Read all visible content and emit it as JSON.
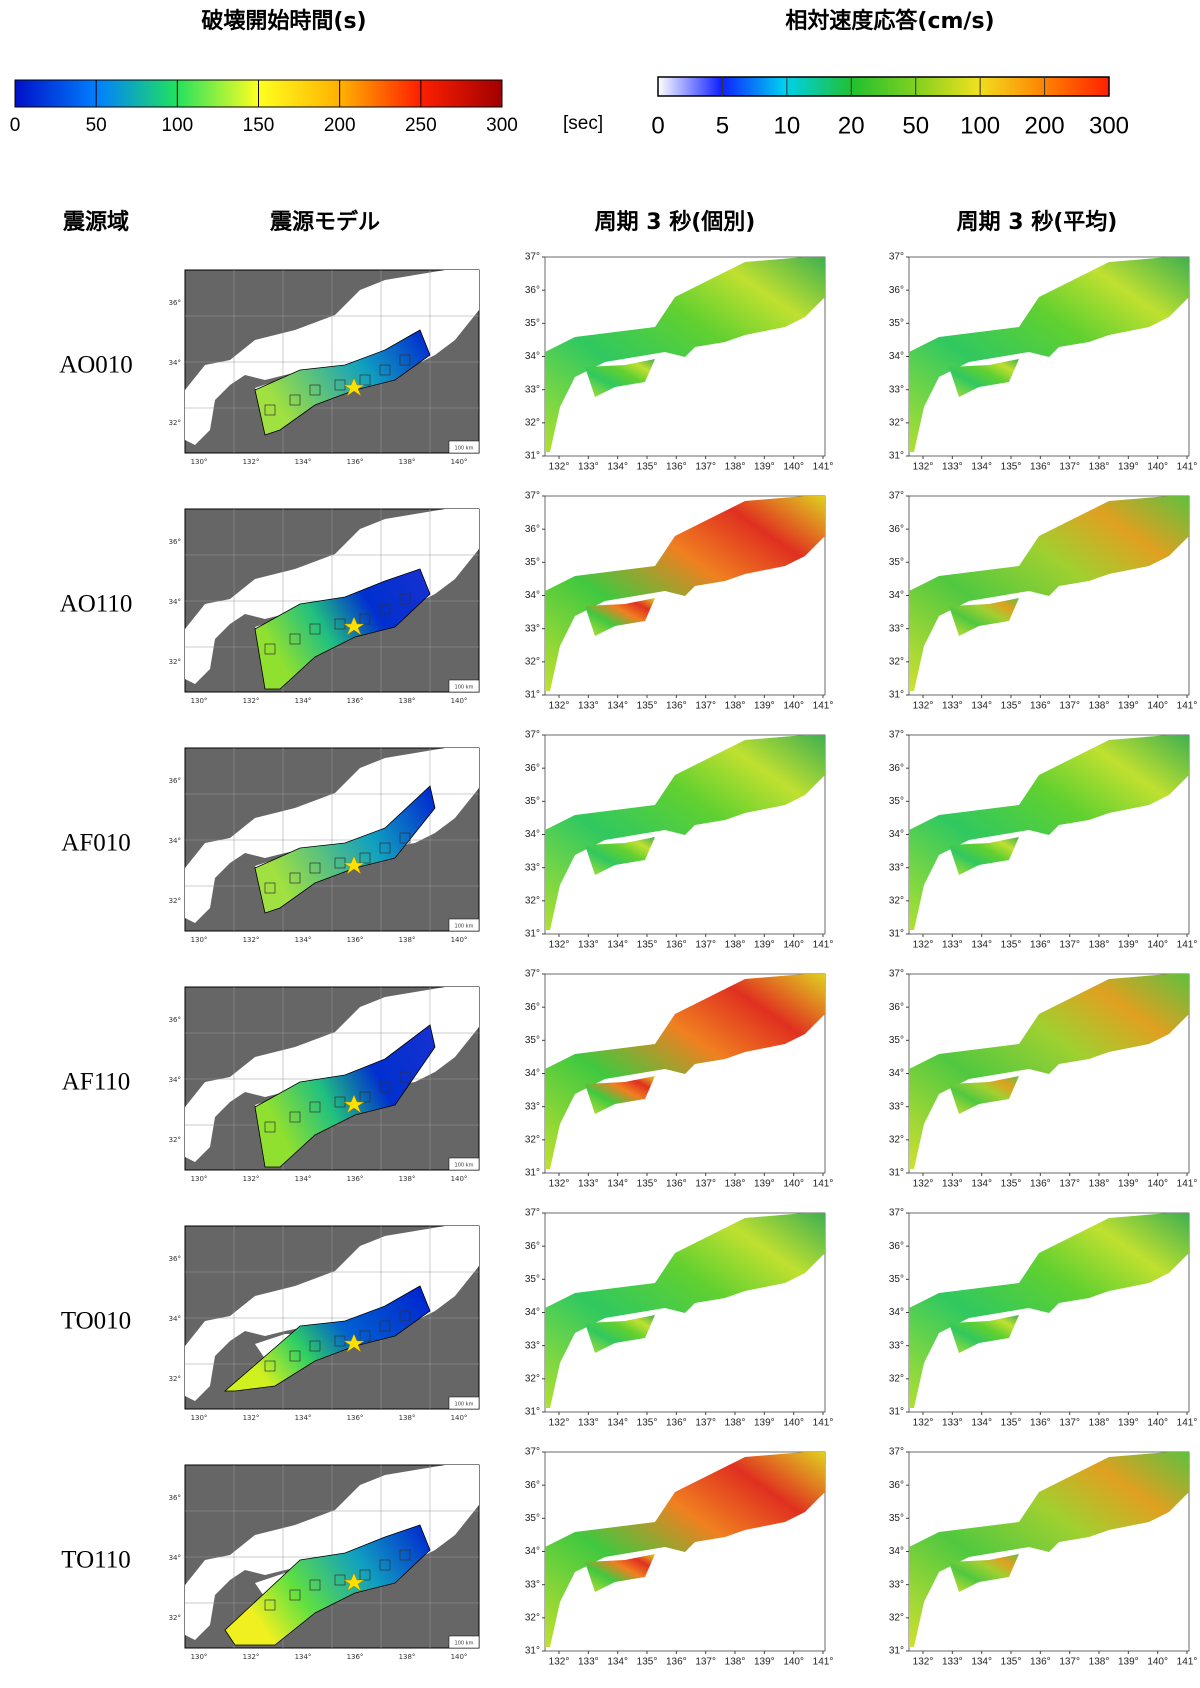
{
  "legends": [
    {
      "title": "破壊開始時間(s)",
      "ticks": [
        0,
        50,
        100,
        150,
        200,
        250,
        300
      ],
      "unit": "[sec]"
    },
    {
      "title": "相対速度応答(cm/s)",
      "ticks": [
        0,
        5,
        10,
        20,
        50,
        100,
        200,
        300
      ]
    }
  ],
  "columns": [
    "震源域",
    "震源モデル",
    "周期 3 秒(個別)",
    "周期 3 秒(平均)"
  ],
  "rows": [
    "AO010",
    "AO110",
    "AF010",
    "AF110",
    "TO010",
    "TO110"
  ],
  "source_map": {
    "lat": [
      "36°",
      "34°",
      "32°"
    ],
    "lon": [
      "130°",
      "132°",
      "134°",
      "136°",
      "138°",
      "140°"
    ],
    "scale": "100 km"
  },
  "response_map": {
    "lat": [
      "37°",
      "36°",
      "35°",
      "34°",
      "33°",
      "32°",
      "31°"
    ],
    "lon": [
      "132°",
      "133°",
      "134°",
      "135°",
      "136°",
      "137°",
      "138°",
      "139°",
      "140°",
      "141°"
    ]
  }
}
